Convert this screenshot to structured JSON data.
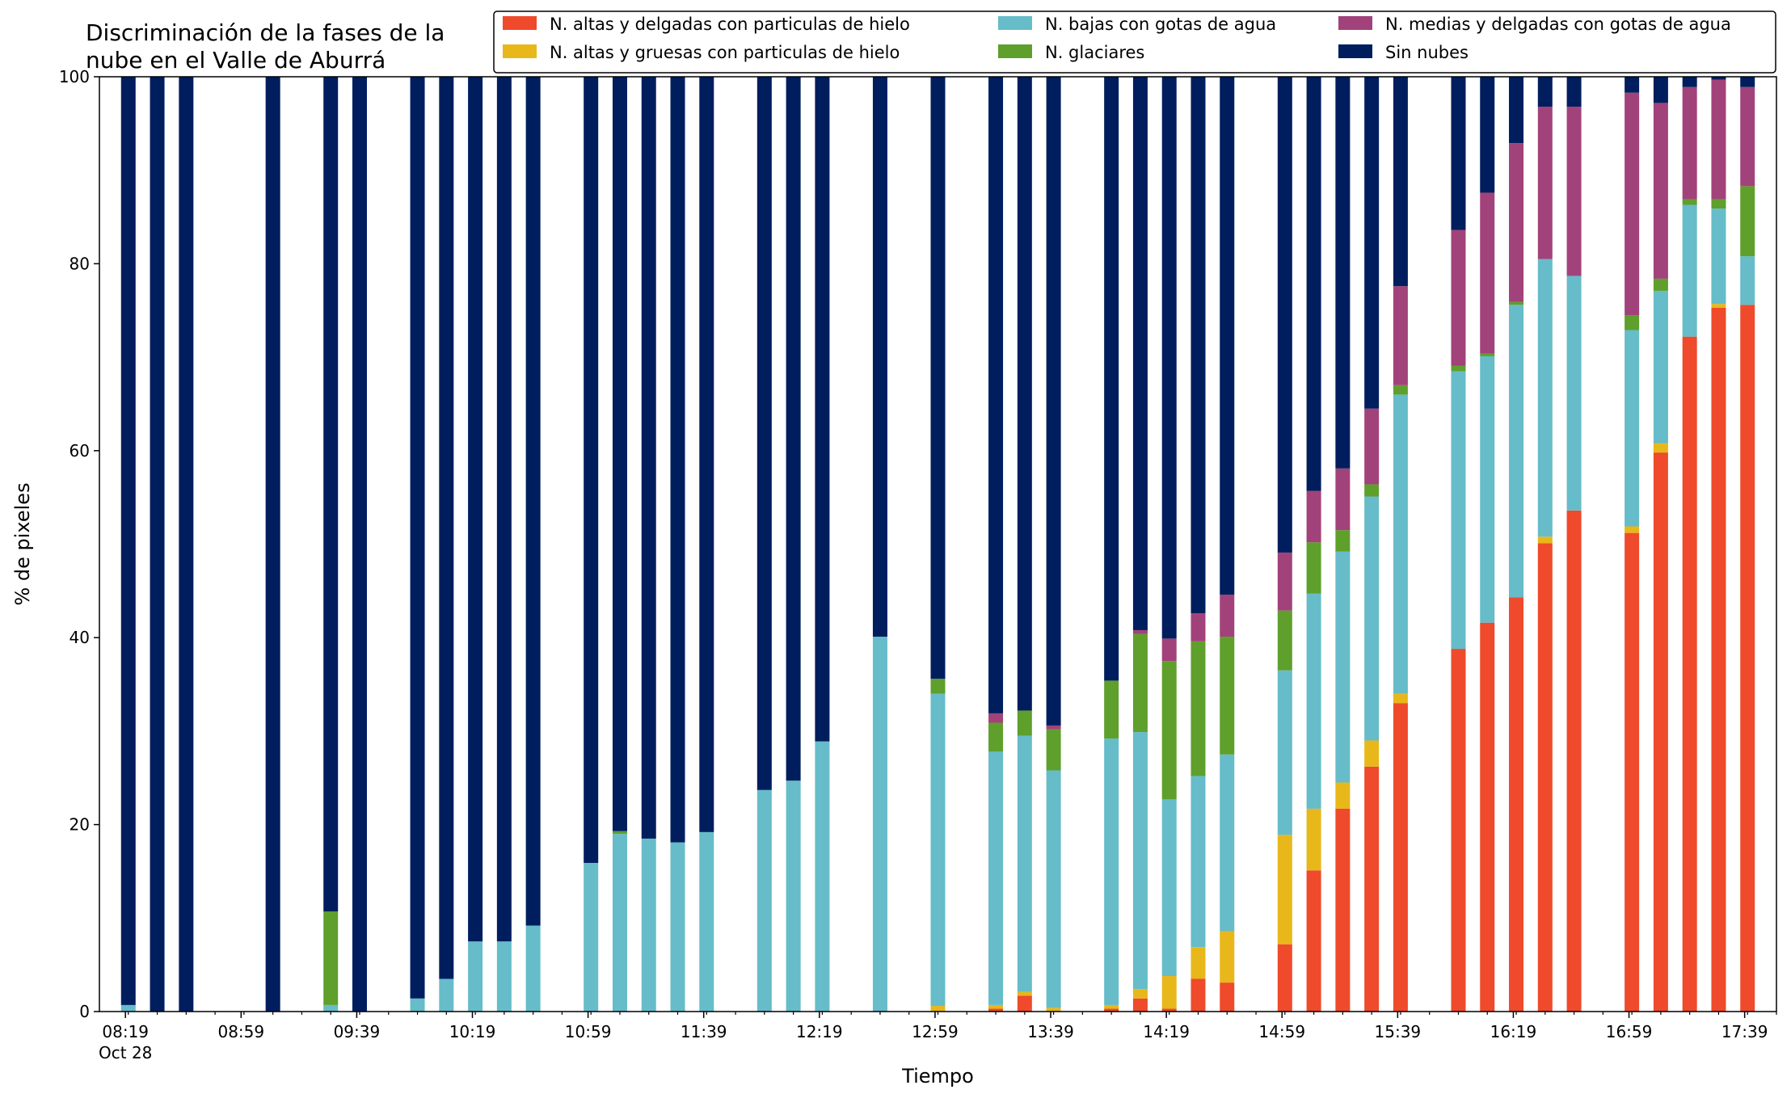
{
  "chart_data": {
    "type": "bar",
    "stacked": true,
    "title": "Discriminación de la fases de la nube en el Valle de Aburrá",
    "title_lines": [
      "Discriminación de la fases de la",
      "nube en el Valle de Aburrá"
    ],
    "xlabel": "Tiempo",
    "ylabel": "% de pixeles",
    "ylim": [
      0,
      100
    ],
    "yticks": [
      0,
      20,
      40,
      60,
      80,
      100
    ],
    "xlim_minutes": [
      490,
      1070
    ],
    "xticks": [
      {
        "t": 499,
        "label": "08:19",
        "sub": "Oct 28"
      },
      {
        "t": 539,
        "label": "08:59"
      },
      {
        "t": 579,
        "label": "09:39"
      },
      {
        "t": 619,
        "label": "10:19"
      },
      {
        "t": 659,
        "label": "10:59"
      },
      {
        "t": 699,
        "label": "11:39"
      },
      {
        "t": 739,
        "label": "12:19"
      },
      {
        "t": 779,
        "label": "12:59"
      },
      {
        "t": 819,
        "label": "13:39"
      },
      {
        "t": 859,
        "label": "14:19"
      },
      {
        "t": 899,
        "label": "14:59"
      },
      {
        "t": 939,
        "label": "15:39"
      },
      {
        "t": 979,
        "label": "16:19"
      },
      {
        "t": 1019,
        "label": "16:59"
      },
      {
        "t": 1059,
        "label": "17:39"
      }
    ],
    "minor_tick_step": 10,
    "grid": false,
    "legend_position": "top-right",
    "series_order": [
      "altas_delgadas_hielo",
      "altas_gruesas_hielo",
      "bajas_agua",
      "glaciares",
      "medias_agua",
      "sin_nubes"
    ],
    "legend_order": [
      "altas_delgadas_hielo",
      "altas_gruesas_hielo",
      "bajas_agua",
      "glaciares",
      "medias_agua",
      "sin_nubes"
    ],
    "series_meta": {
      "altas_delgadas_hielo": {
        "name": "N. altas y delgadas con particulas de hielo",
        "color": "#ee4a2b"
      },
      "altas_gruesas_hielo": {
        "name": "N. altas y gruesas con particulas de hielo",
        "color": "#e8b71a"
      },
      "bajas_agua": {
        "name": "N. bajas con gotas de agua",
        "color": "#66bcc9"
      },
      "glaciares": {
        "name": "N. glaciares",
        "color": "#5f9f2c"
      },
      "medias_agua": {
        "name": "N. medias y delgadas con gotas de agua",
        "color": "#a2427a"
      },
      "sin_nubes": {
        "name": "Sin nubes",
        "color": "#001e5e"
      }
    },
    "bars": [
      {
        "t": 500,
        "v": [
          0,
          0,
          0.7,
          0,
          0,
          99.3
        ]
      },
      {
        "t": 510,
        "v": [
          0,
          0,
          0,
          0,
          0,
          100
        ]
      },
      {
        "t": 520,
        "v": [
          0,
          0,
          0,
          0,
          0,
          100
        ]
      },
      {
        "t": 550,
        "v": [
          0,
          0,
          0,
          0,
          0,
          100
        ]
      },
      {
        "t": 570,
        "v": [
          0,
          0,
          0.7,
          10,
          0,
          89.3
        ]
      },
      {
        "t": 580,
        "v": [
          0,
          0,
          0,
          0,
          0,
          100
        ]
      },
      {
        "t": 600,
        "v": [
          0,
          0,
          1.4,
          0,
          0,
          98.6
        ]
      },
      {
        "t": 610,
        "v": [
          0,
          0,
          3.5,
          0,
          0,
          96.5
        ]
      },
      {
        "t": 620,
        "v": [
          0,
          0,
          7.5,
          0,
          0,
          92.5
        ]
      },
      {
        "t": 630,
        "v": [
          0,
          0,
          7.5,
          0,
          0,
          92.5
        ]
      },
      {
        "t": 640,
        "v": [
          0,
          0,
          9.2,
          0,
          0,
          90.8
        ]
      },
      {
        "t": 660,
        "v": [
          0,
          0,
          15.9,
          0,
          0,
          84.1
        ]
      },
      {
        "t": 670,
        "v": [
          0,
          0,
          19,
          0.3,
          0,
          80.7
        ]
      },
      {
        "t": 680,
        "v": [
          0,
          0,
          18.5,
          0,
          0,
          81.5
        ]
      },
      {
        "t": 690,
        "v": [
          0,
          0,
          18.1,
          0,
          0,
          81.9
        ]
      },
      {
        "t": 700,
        "v": [
          0,
          0,
          19.2,
          0,
          0,
          80.8
        ]
      },
      {
        "t": 720,
        "v": [
          0,
          0,
          23.7,
          0,
          0,
          76.3
        ]
      },
      {
        "t": 730,
        "v": [
          0,
          0,
          24.7,
          0,
          0,
          75.3
        ]
      },
      {
        "t": 740,
        "v": [
          0,
          0,
          28.9,
          0,
          0,
          71.1
        ]
      },
      {
        "t": 760,
        "v": [
          0,
          0,
          40.1,
          0,
          0,
          59.9
        ]
      },
      {
        "t": 780,
        "v": [
          0,
          0.6,
          33.4,
          1.6,
          0,
          64.4
        ]
      },
      {
        "t": 800,
        "v": [
          0.3,
          0.4,
          27.1,
          3.1,
          1,
          68.1
        ]
      },
      {
        "t": 810,
        "v": [
          1.7,
          0.4,
          27.4,
          2.7,
          0,
          67.8
        ]
      },
      {
        "t": 820,
        "v": [
          0,
          0.4,
          25.4,
          4.4,
          0.4,
          69.4
        ]
      },
      {
        "t": 840,
        "v": [
          0.3,
          0.4,
          28.5,
          6.2,
          0,
          64.6
        ]
      },
      {
        "t": 850,
        "v": [
          1.4,
          1,
          27.5,
          10.5,
          0.4,
          59.2
        ]
      },
      {
        "t": 860,
        "v": [
          0.3,
          3.5,
          18.9,
          14.8,
          2.4,
          60.1
        ]
      },
      {
        "t": 870,
        "v": [
          3.5,
          3.4,
          18.3,
          14.4,
          3,
          57.4
        ]
      },
      {
        "t": 880,
        "v": [
          3.1,
          5.5,
          18.9,
          12.6,
          4.5,
          55.4
        ]
      },
      {
        "t": 900,
        "v": [
          7.2,
          11.7,
          17.6,
          6.4,
          6.2,
          50.9
        ]
      },
      {
        "t": 910,
        "v": [
          15.1,
          6.6,
          23,
          5.5,
          5.5,
          44.3
        ]
      },
      {
        "t": 920,
        "v": [
          21.7,
          2.8,
          24.7,
          2.3,
          6.6,
          41.9
        ]
      },
      {
        "t": 930,
        "v": [
          26.2,
          2.8,
          26.1,
          1.3,
          8.1,
          35.5
        ]
      },
      {
        "t": 940,
        "v": [
          33,
          1,
          32,
          1,
          10.6,
          22.4
        ]
      },
      {
        "t": 960,
        "v": [
          38.8,
          0,
          29.7,
          0.6,
          14.5,
          16.4
        ]
      },
      {
        "t": 970,
        "v": [
          41.6,
          0,
          28.5,
          0.3,
          17.2,
          12.4
        ]
      },
      {
        "t": 980,
        "v": [
          44.3,
          0,
          31.3,
          0.3,
          17,
          7.1
        ]
      },
      {
        "t": 990,
        "v": [
          50.1,
          0.7,
          29.7,
          0,
          16.3,
          3.2
        ]
      },
      {
        "t": 1000,
        "v": [
          53.6,
          0,
          25.1,
          0,
          18.1,
          3.2
        ]
      },
      {
        "t": 1020,
        "v": [
          51.2,
          0.7,
          21,
          1.6,
          23.8,
          1.7
        ]
      },
      {
        "t": 1030,
        "v": [
          59.8,
          1,
          16.3,
          1.3,
          18.8,
          2.8
        ]
      },
      {
        "t": 1040,
        "v": [
          72.2,
          0,
          14.1,
          0.6,
          12,
          1.1
        ]
      },
      {
        "t": 1050,
        "v": [
          75.3,
          0.4,
          10.2,
          1,
          12.8,
          0.3
        ]
      },
      {
        "t": 1060,
        "v": [
          75.6,
          0,
          5.2,
          7.5,
          10.6,
          1.1
        ]
      }
    ]
  }
}
